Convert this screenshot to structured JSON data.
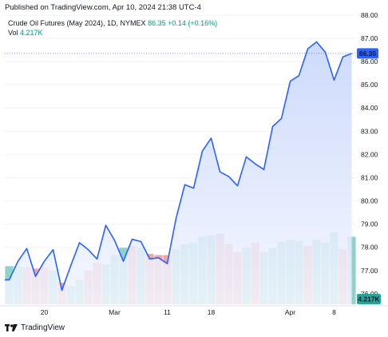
{
  "published": "Published on TradingView.com, Apr 10, 2024 21:38 UTC-4",
  "legend": {
    "symbol": "Crude Oil Futures (May 2024), 1D, NYMEX",
    "price": "86.35",
    "change": "+0.14 (+0.16%)",
    "vol_label": "Vol",
    "vol_value": "4.217K"
  },
  "footer": {
    "brand": "TradingView"
  },
  "colors": {
    "line": "#2962ff",
    "area_top": "#c5d4fb",
    "area_bottom": "#f3f6fe",
    "vol_up": "#8fd2c9",
    "vol_down": "#f1a5a6",
    "price_label_bg": "#2962ff",
    "vol_label_bg": "#26a69a"
  },
  "chart_data": {
    "type": "area",
    "title": "Crude Oil Futures (May 2024), 1D, NYMEX",
    "y_axis": {
      "position": "right",
      "ylim": [
        75.55,
        88.1
      ],
      "ticks": [
        "76.00",
        "77.00",
        "78.00",
        "79.00",
        "80.00",
        "81.00",
        "82.00",
        "83.00",
        "84.00",
        "85.00",
        "86.00",
        "87.00",
        "88.00"
      ]
    },
    "x_axis": {
      "tick_labels": [
        "20",
        "Mar",
        "11",
        "18",
        "Apr",
        "8"
      ]
    },
    "grid": true,
    "last_price_label": "86.35",
    "last_volume_label": "4.217K",
    "series": [
      {
        "kind": "price",
        "x": [
          "Feb 13",
          "Feb 14",
          "Feb 15",
          "Feb 16",
          "Feb 20",
          "Feb 21",
          "Feb 22",
          "Feb 23",
          "Feb 26",
          "Feb 27",
          "Feb 28",
          "Feb 29",
          "Mar 1",
          "Mar 4",
          "Mar 5",
          "Mar 6",
          "Mar 7",
          "Mar 8",
          "Mar 11",
          "Mar 12",
          "Mar 13",
          "Mar 14",
          "Mar 15",
          "Mar 18",
          "Mar 19",
          "Mar 20",
          "Mar 21",
          "Mar 22",
          "Mar 25",
          "Mar 26",
          "Mar 27",
          "Mar 28",
          "Apr 1",
          "Apr 2",
          "Apr 3",
          "Apr 4",
          "Apr 5",
          "Apr 8",
          "Apr 9",
          "Apr 10"
        ],
        "values": [
          76.6,
          77.4,
          77.95,
          76.75,
          77.4,
          77.9,
          76.15,
          77.2,
          78.2,
          77.9,
          77.5,
          78.95,
          78.3,
          77.4,
          78.35,
          78.25,
          77.5,
          77.55,
          77.3,
          79.25,
          80.7,
          80.55,
          82.15,
          82.7,
          81.25,
          81.05,
          80.65,
          81.9,
          81.6,
          81.35,
          83.2,
          83.55,
          85.15,
          85.4,
          86.55,
          86.85,
          86.4,
          85.2,
          86.2,
          86.35
        ]
      },
      {
        "kind": "volume",
        "values": [
          0.62,
          0.62,
          0.6,
          0.58,
          0.6,
          0.55,
          0.35,
          0.3,
          0.4,
          0.55,
          0.68,
          0.65,
          0.8,
          0.92,
          0.95,
          0.92,
          0.82,
          0.8,
          0.8,
          0.9,
          0.98,
          1.0,
          1.1,
          1.12,
          1.15,
          0.98,
          0.85,
          0.92,
          1.0,
          0.85,
          0.92,
          1.02,
          1.05,
          1.03,
          0.95,
          1.05,
          1.0,
          1.17,
          0.9,
          1.1
        ],
        "direction": [
          "up",
          "up",
          "down",
          "down",
          "down",
          "up",
          "down",
          "up",
          "up",
          "down",
          "down",
          "up",
          "up",
          "up",
          "down",
          "up",
          "down",
          "down",
          "down",
          "up",
          "up",
          "up",
          "up",
          "up",
          "down",
          "down",
          "down",
          "up",
          "down",
          "up",
          "up",
          "up",
          "up",
          "up",
          "down",
          "up",
          "up",
          "up",
          "down",
          "up"
        ]
      }
    ]
  }
}
